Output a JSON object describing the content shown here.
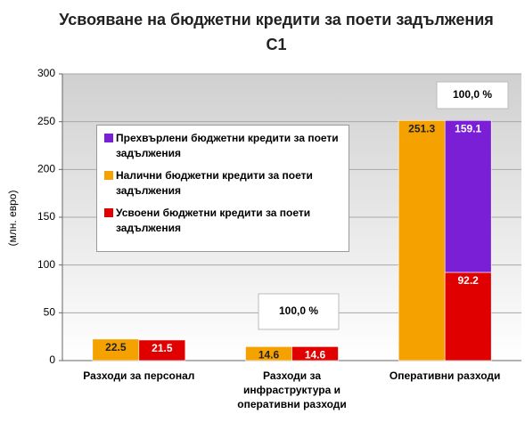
{
  "chart_data": {
    "type": "bar",
    "title": "Усвояване на бюджетни кредити за поети задължения C1",
    "ylabel": "(млн. евро)",
    "categories": [
      "Разходи за персонал",
      "Разходи за инфраструктура и оперативни разходи",
      "Оперативни разходи"
    ],
    "series": [
      {
        "name": "Прехвърлени бюджетни кредити за поети задължения",
        "color": "#7a1fd6",
        "values": [
          null,
          null,
          159.1
        ],
        "stacked_on": 2
      },
      {
        "name": "Налични бюджетни кредити за поети задължения",
        "color": "#f5a100",
        "values": [
          22.5,
          14.6,
          251.3
        ]
      },
      {
        "name": "Усвоени бюджетни кредити за поети задължения",
        "color": "#e00000",
        "values": [
          21.5,
          14.6,
          92.2
        ]
      }
    ],
    "annotations": [
      "100,0 %",
      "100,0 %"
    ],
    "ylim": [
      0,
      300
    ],
    "yticks": [
      0,
      50,
      100,
      150,
      200,
      250,
      300
    ],
    "grid": true
  }
}
